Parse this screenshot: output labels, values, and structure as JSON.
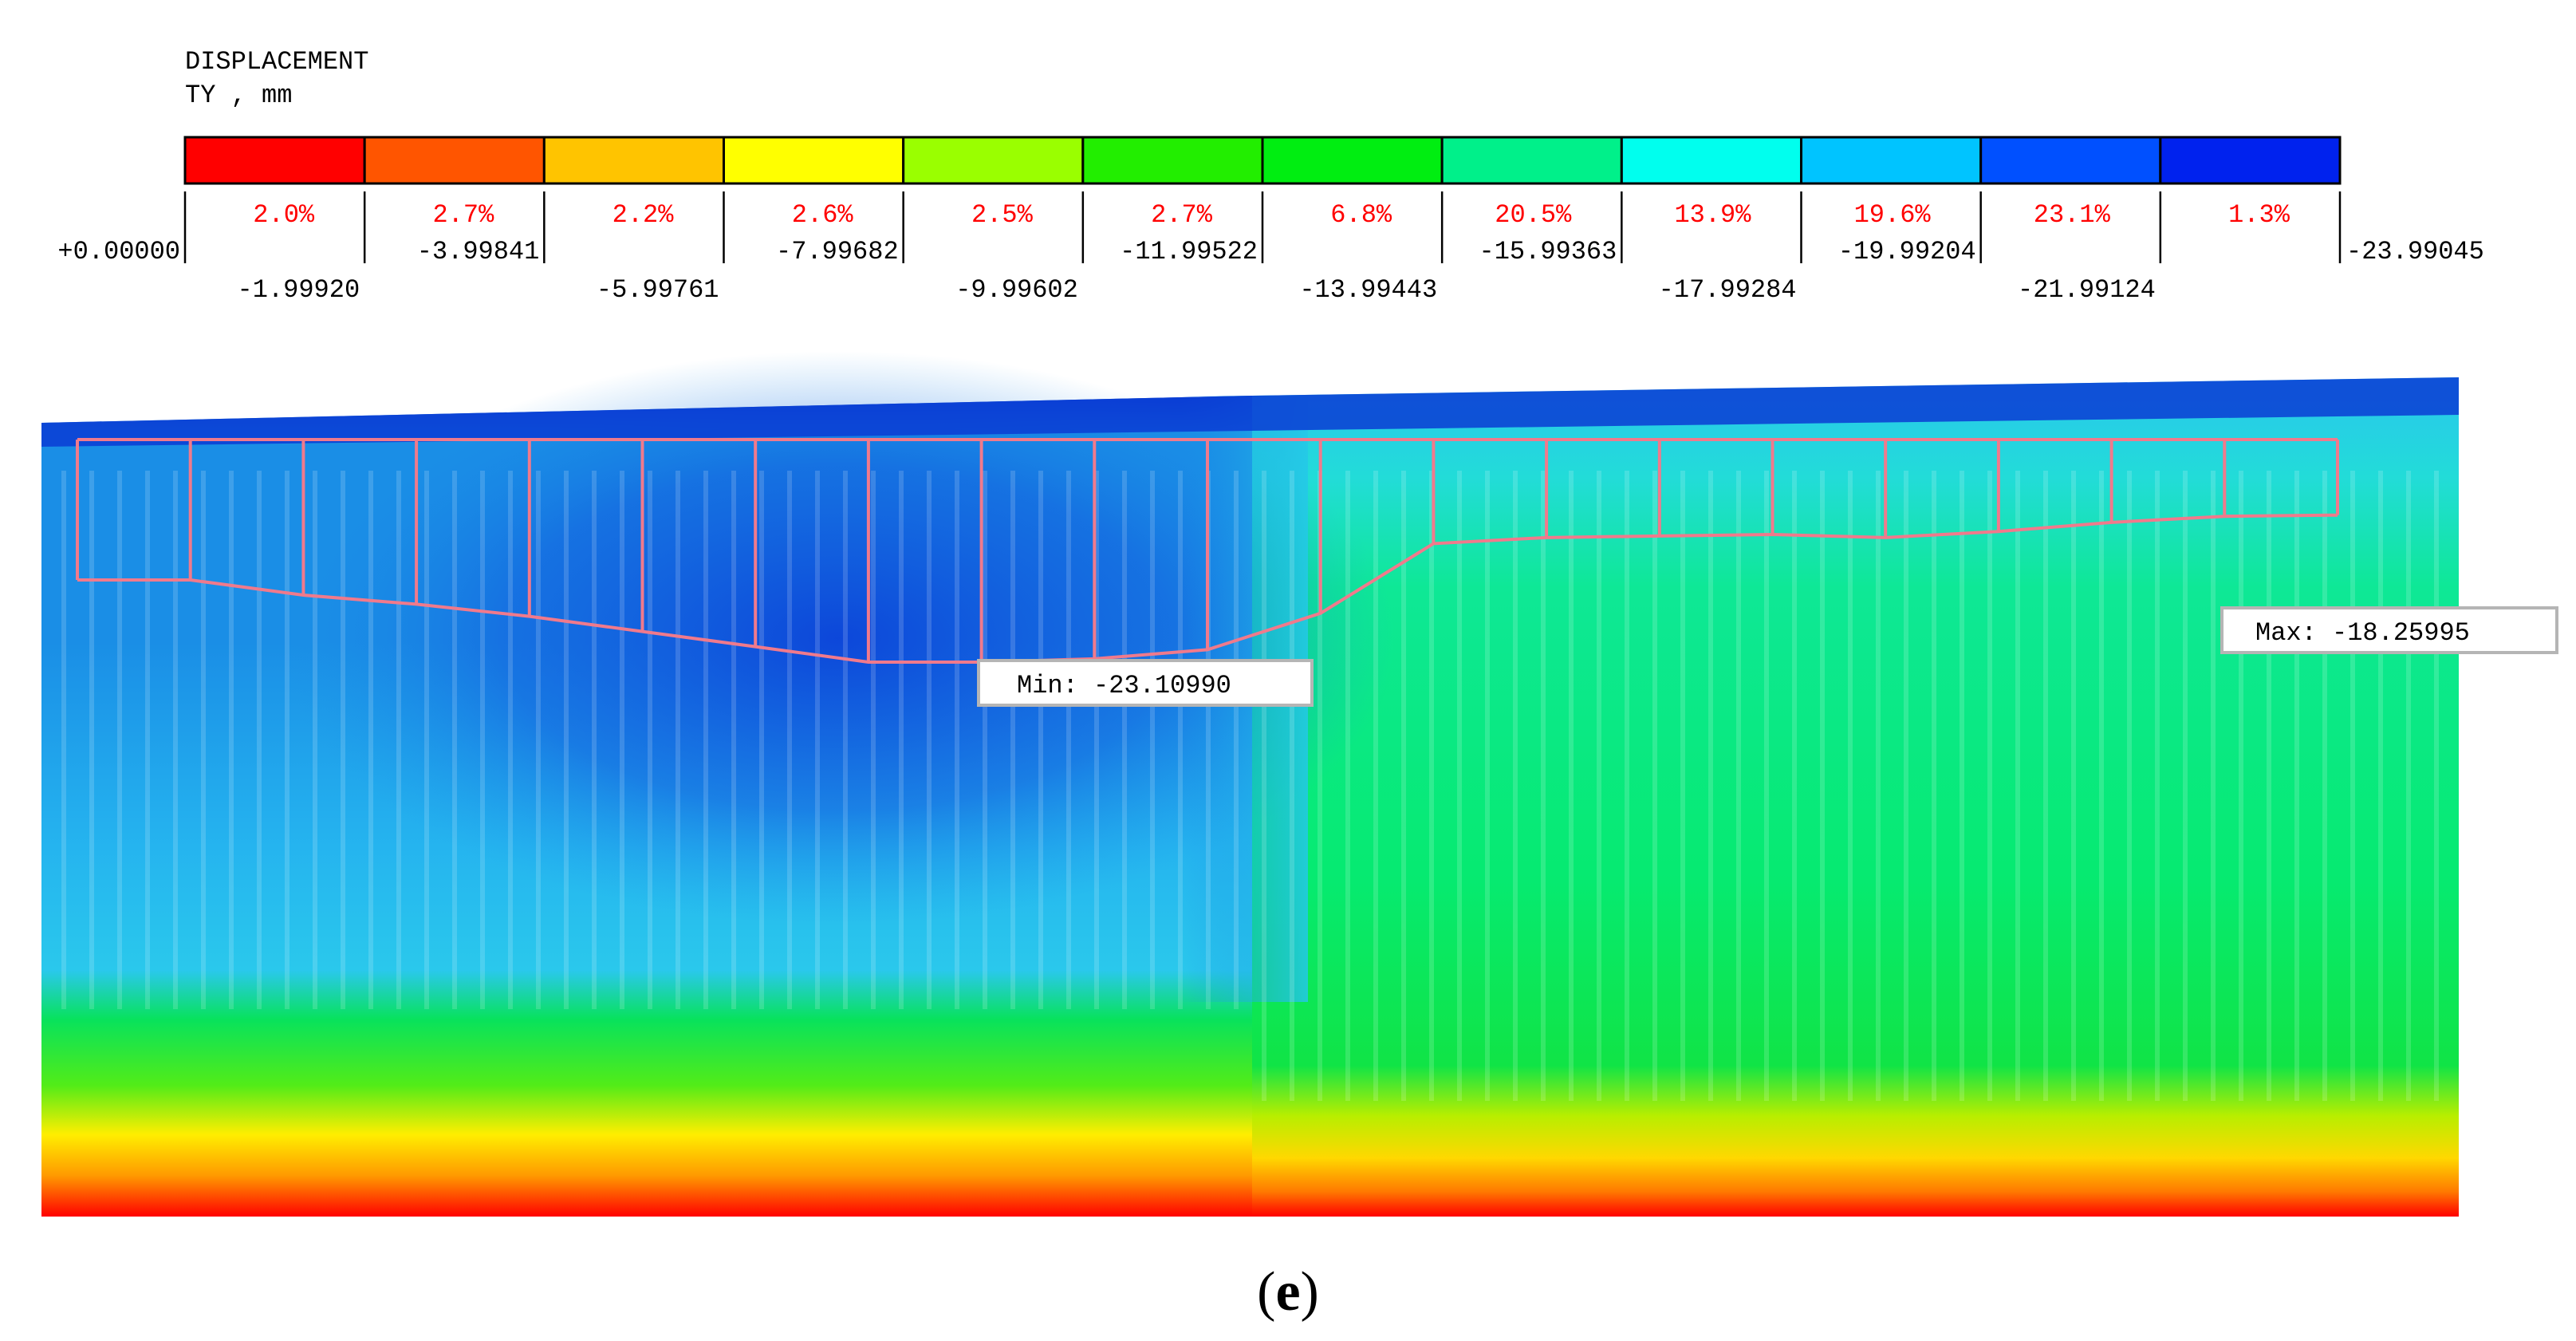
{
  "chart_data": {
    "type": "heatmap",
    "title_line1": "DISPLACEMENT",
    "title_line2": "TY , mm",
    "legend": {
      "colors": [
        "#ff0000",
        "#ff5500",
        "#ffc400",
        "#ffff00",
        "#9aff00",
        "#22ee00",
        "#00ee11",
        "#00f08a",
        "#00ffee",
        "#00c4ff",
        "#0050ff",
        "#0022ee"
      ],
      "percentages": [
        "2.0%",
        "2.7%",
        "2.2%",
        "2.6%",
        "2.5%",
        "2.7%",
        "6.8%",
        "20.5%",
        "13.9%",
        "19.6%",
        "23.1%",
        "1.3%"
      ],
      "boundaries": [
        "+0.00000",
        "-1.99920",
        "-3.99841",
        "-5.99761",
        "-7.99682",
        "-9.99602",
        "-11.99522",
        "-13.99443",
        "-15.99363",
        "-17.99284",
        "-19.99204",
        "-21.99124",
        "-23.99045"
      ]
    },
    "displacement_profile": {
      "units": "mm",
      "values": [
        -20.4,
        -20.4,
        -20.9,
        -21.2,
        -21.6,
        -22.1,
        -22.6,
        -23.11,
        -23.11,
        -23.0,
        -22.7,
        -21.5,
        -19.2,
        -19.0,
        -18.95,
        -18.9,
        -19.0,
        -18.8,
        -18.5,
        -18.3,
        -18.26
      ]
    },
    "min_label": "Min: -23.10990",
    "max_label": "Max: -18.25995",
    "panel_label_open": "(",
    "panel_label_letter": "e",
    "panel_label_close": ")"
  }
}
